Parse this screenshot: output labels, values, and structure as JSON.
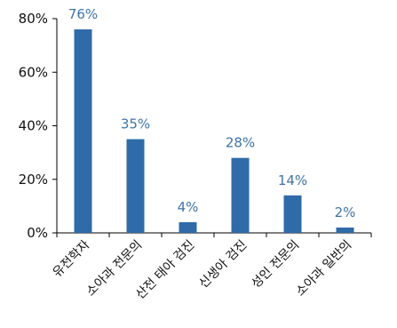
{
  "chart_data": {
    "type": "bar",
    "categories": [
      "유전학자",
      "소아과 전문의",
      "산전 태아 검진",
      "신생아 검진",
      "성인 전문의",
      "소아과 일반의"
    ],
    "values": [
      76,
      35,
      4,
      28,
      14,
      2
    ],
    "data_labels": [
      "76%",
      "35%",
      "4%",
      "28%",
      "14%",
      "2%"
    ],
    "title": "",
    "xlabel": "",
    "ylabel": "",
    "ylim": [
      0,
      80
    ],
    "yticks": [
      0,
      20,
      40,
      60,
      80
    ],
    "ytick_labels": [
      "0%",
      "20%",
      "40%",
      "60%",
      "80%"
    ],
    "grid": false,
    "legend": "none",
    "colors": {
      "bar": "#2e6ba8",
      "data_label": "#3f73a8",
      "axis": "#000000"
    }
  }
}
